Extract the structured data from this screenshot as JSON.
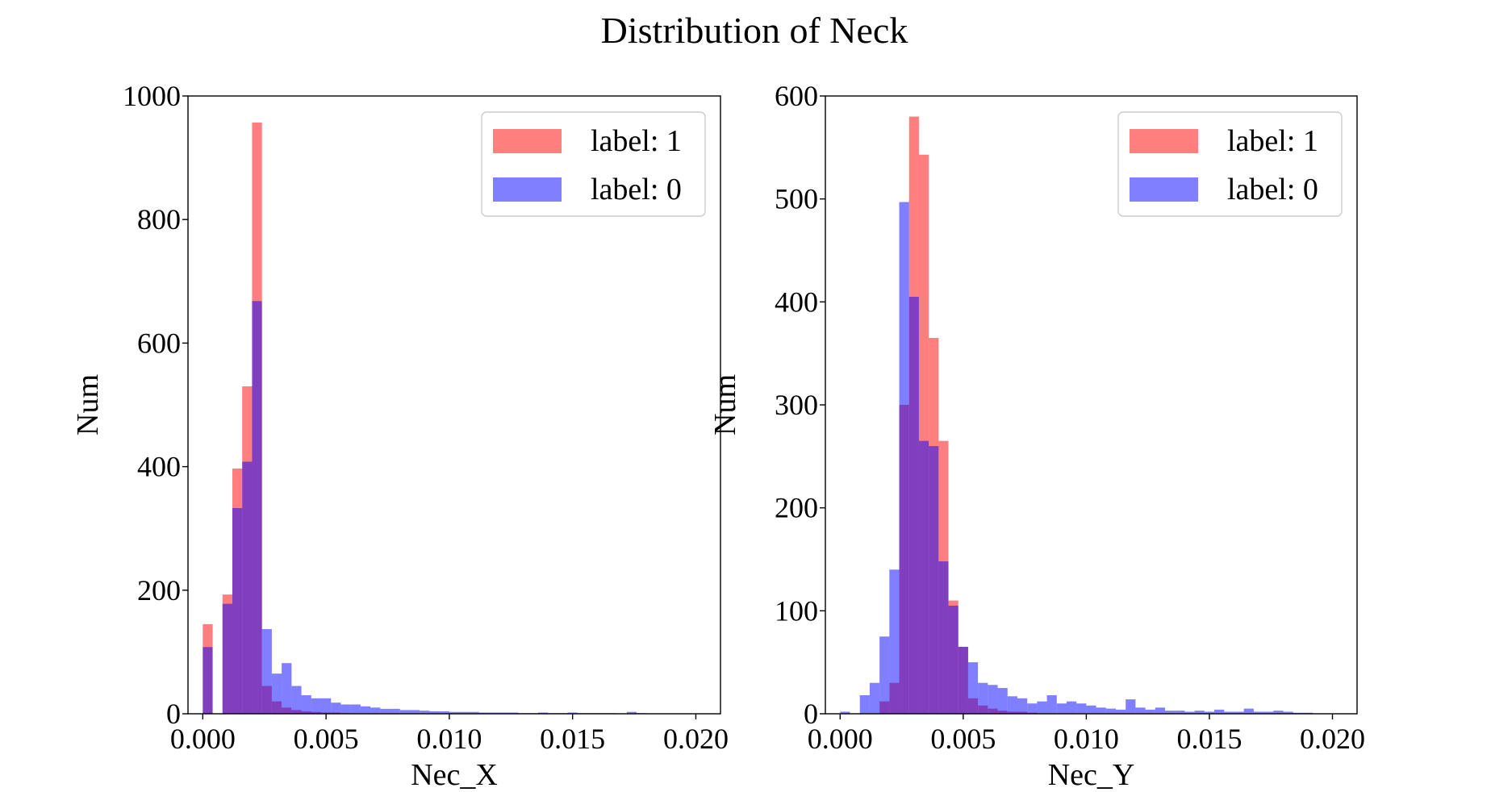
{
  "figure": {
    "title": "Distribution of Neck"
  },
  "colors": {
    "label_1": "#ff0000",
    "label_0": "#0000ff",
    "alpha": 0.5
  },
  "chart_data": [
    {
      "type": "histogram",
      "xlabel": "Nec_X",
      "ylabel": "Num",
      "xlim": [
        -0.0006,
        0.021
      ],
      "ylim": [
        0,
        1000
      ],
      "xticks": [
        0.0,
        0.005,
        0.01,
        0.015,
        0.02
      ],
      "xtick_labels": [
        "0.000",
        "0.005",
        "0.010",
        "0.015",
        "0.020"
      ],
      "yticks": [
        0,
        200,
        400,
        600,
        800,
        1000
      ],
      "ytick_labels": [
        "0",
        "200",
        "400",
        "600",
        "800",
        "1000"
      ],
      "bin_width": 0.0004,
      "legend": {
        "placement": "upper right",
        "entries": [
          "label: 1",
          "label: 0"
        ]
      },
      "series": [
        {
          "name": "label: 1",
          "color": "#ff0000",
          "bins": [
            [
              0.0,
              145
            ],
            [
              0.0008,
              193
            ],
            [
              0.0012,
              397
            ],
            [
              0.0016,
              530
            ],
            [
              0.002,
              957
            ],
            [
              0.0024,
              45
            ],
            [
              0.0028,
              20
            ],
            [
              0.0032,
              10
            ],
            [
              0.0036,
              6
            ],
            [
              0.004,
              4
            ],
            [
              0.0044,
              3
            ],
            [
              0.0048,
              2
            ],
            [
              0.0052,
              2
            ],
            [
              0.0056,
              1
            ]
          ]
        },
        {
          "name": "label: 0",
          "color": "#0000ff",
          "bins": [
            [
              0.0,
              108
            ],
            [
              0.0008,
              178
            ],
            [
              0.0012,
              333
            ],
            [
              0.0016,
              408
            ],
            [
              0.002,
              668
            ],
            [
              0.0024,
              137
            ],
            [
              0.0028,
              65
            ],
            [
              0.0032,
              82
            ],
            [
              0.0036,
              45
            ],
            [
              0.004,
              30
            ],
            [
              0.0044,
              25
            ],
            [
              0.0048,
              25
            ],
            [
              0.0052,
              18
            ],
            [
              0.0056,
              15
            ],
            [
              0.006,
              15
            ],
            [
              0.0064,
              12
            ],
            [
              0.0068,
              10
            ],
            [
              0.0072,
              8
            ],
            [
              0.0076,
              8
            ],
            [
              0.008,
              6
            ],
            [
              0.0084,
              6
            ],
            [
              0.0088,
              5
            ],
            [
              0.0092,
              4
            ],
            [
              0.0096,
              4
            ],
            [
              0.01,
              3
            ],
            [
              0.0104,
              3
            ],
            [
              0.0108,
              3
            ],
            [
              0.0112,
              2
            ],
            [
              0.0116,
              2
            ],
            [
              0.012,
              2
            ],
            [
              0.0124,
              2
            ],
            [
              0.0128,
              1
            ],
            [
              0.0132,
              1
            ],
            [
              0.0136,
              2
            ],
            [
              0.014,
              1
            ],
            [
              0.0144,
              1
            ],
            [
              0.0148,
              2
            ],
            [
              0.0152,
              1
            ],
            [
              0.0156,
              1
            ],
            [
              0.016,
              1
            ],
            [
              0.0164,
              1
            ],
            [
              0.0172,
              3
            ],
            [
              0.0176,
              1
            ]
          ]
        }
      ]
    },
    {
      "type": "histogram",
      "xlabel": "Nec_Y",
      "ylabel": "Num",
      "xlim": [
        -0.0006,
        0.021
      ],
      "ylim": [
        0,
        600
      ],
      "xticks": [
        0.0,
        0.005,
        0.01,
        0.015,
        0.02
      ],
      "xtick_labels": [
        "0.000",
        "0.005",
        "0.010",
        "0.015",
        "0.020"
      ],
      "yticks": [
        0,
        100,
        200,
        300,
        400,
        500,
        600
      ],
      "ytick_labels": [
        "0",
        "100",
        "200",
        "300",
        "400",
        "500",
        "600"
      ],
      "bin_width": 0.0004,
      "legend": {
        "placement": "upper right",
        "entries": [
          "label: 1",
          "label: 0"
        ]
      },
      "series": [
        {
          "name": "label: 1",
          "color": "#ff0000",
          "bins": [
            [
              0.0016,
              12
            ],
            [
              0.002,
              30
            ],
            [
              0.0024,
              300
            ],
            [
              0.0028,
              580
            ],
            [
              0.0032,
              543
            ],
            [
              0.0036,
              365
            ],
            [
              0.004,
              265
            ],
            [
              0.0044,
              110
            ],
            [
              0.0048,
              65
            ],
            [
              0.0052,
              15
            ],
            [
              0.0056,
              8
            ],
            [
              0.006,
              5
            ],
            [
              0.0064,
              3
            ],
            [
              0.0068,
              2
            ],
            [
              0.0072,
              2
            ],
            [
              0.0076,
              1
            ]
          ]
        },
        {
          "name": "label: 0",
          "color": "#0000ff",
          "bins": [
            [
              0.0,
              2
            ],
            [
              0.0008,
              18
            ],
            [
              0.0012,
              30
            ],
            [
              0.0016,
              75
            ],
            [
              0.002,
              140
            ],
            [
              0.0024,
              497
            ],
            [
              0.0028,
              405
            ],
            [
              0.0032,
              265
            ],
            [
              0.0036,
              260
            ],
            [
              0.004,
              148
            ],
            [
              0.0044,
              105
            ],
            [
              0.0048,
              65
            ],
            [
              0.0052,
              50
            ],
            [
              0.0056,
              30
            ],
            [
              0.006,
              28
            ],
            [
              0.0064,
              25
            ],
            [
              0.0068,
              17
            ],
            [
              0.0072,
              15
            ],
            [
              0.0076,
              10
            ],
            [
              0.008,
              12
            ],
            [
              0.0084,
              18
            ],
            [
              0.0088,
              10
            ],
            [
              0.0092,
              12
            ],
            [
              0.0096,
              10
            ],
            [
              0.01,
              8
            ],
            [
              0.0104,
              6
            ],
            [
              0.0108,
              5
            ],
            [
              0.0112,
              4
            ],
            [
              0.0116,
              14
            ],
            [
              0.012,
              6
            ],
            [
              0.0124,
              4
            ],
            [
              0.0128,
              6
            ],
            [
              0.0132,
              3
            ],
            [
              0.0136,
              3
            ],
            [
              0.014,
              2
            ],
            [
              0.0144,
              3
            ],
            [
              0.0148,
              2
            ],
            [
              0.0152,
              4
            ],
            [
              0.0156,
              2
            ],
            [
              0.016,
              2
            ],
            [
              0.0164,
              5
            ],
            [
              0.0168,
              2
            ],
            [
              0.0172,
              2
            ],
            [
              0.0176,
              3
            ],
            [
              0.018,
              2
            ],
            [
              0.0184,
              1
            ],
            [
              0.0188,
              1
            ]
          ]
        }
      ]
    }
  ]
}
